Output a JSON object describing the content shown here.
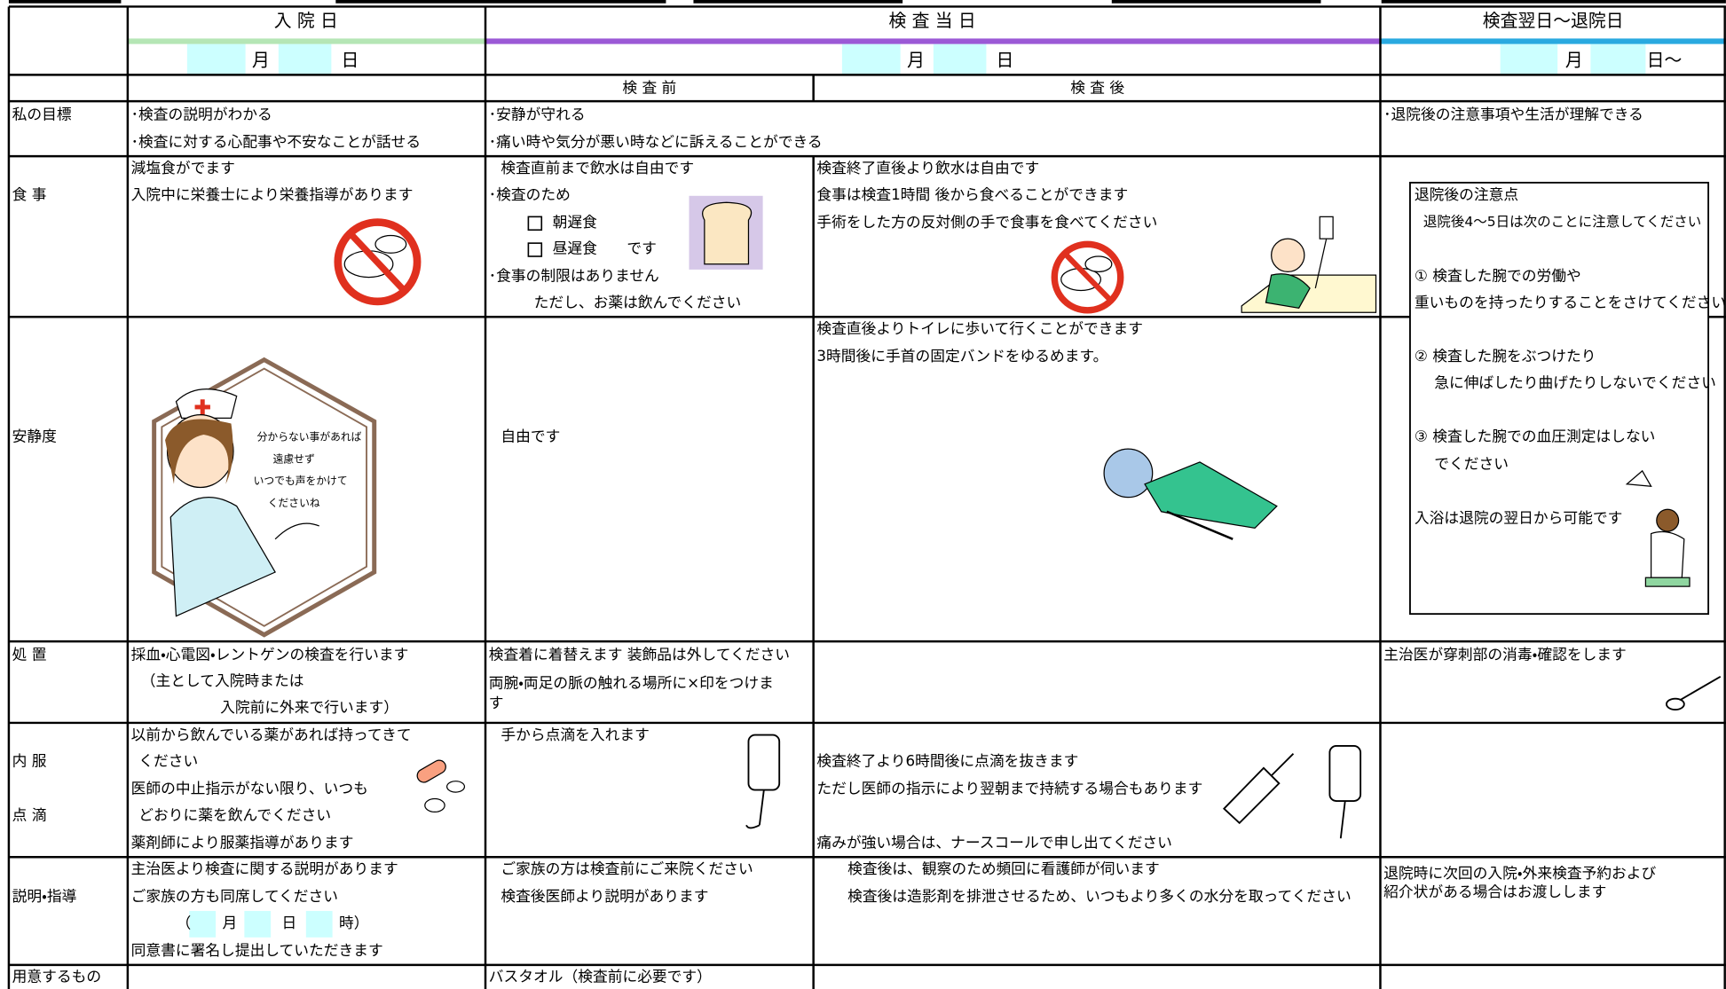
{
  "header": {
    "days": [
      "入 院 日",
      "検 査 当 日",
      "検査翌日～退院日"
    ],
    "dates": [
      [
        "月",
        "日"
      ],
      [
        "月",
        "日"
      ],
      [
        "月",
        "日～"
      ]
    ],
    "phases": [
      "検 査 前",
      "検 査 後"
    ]
  },
  "rows": [
    {
      "label": "私の目標",
      "cells": [
        [
          "･検査の説明がわかる",
          "･検査に対する心配事や不安なことが話せる"
        ],
        [
          "･安静が守れる",
          "･痛い時や気分が悪い時などに訴えることができる"
        ],
        [
          "･退院後の注意事項や生活が理解できる"
        ]
      ]
    },
    {
      "label": "食 事",
      "cells": [
        [
          "減塩食がでます",
          "入院中に栄養士により栄養指導があります"
        ],
        [
          "検査直前まで飲水は自由です",
          "･検査のため",
          "朝遅食",
          "昼遅食　　です",
          "･食事の制限はありません",
          "ただし、お薬は飲んでください"
        ],
        [
          "検査終了直後より飲水は自由です",
          "食事は検査1時間 後から食べることができます",
          "手術をした方の反対側の手で食事を食べてください"
        ]
      ]
    },
    {
      "label": "安静度",
      "cells": [
        [
          "分からない事があれば",
          "遠慮せず",
          "いつでも声をかけて",
          "くださいね"
        ],
        [
          "自由です"
        ],
        [
          "検査直後よりトイレに歩いて行くことができます",
          "3時間後に手首の固定バンドをゆるめます。"
        ]
      ]
    },
    {
      "label": "処 置",
      "cells": [
        [
          "採血・心電図・レントゲンの検査を行います",
          "（主として入院時または",
          "入院前に外来で行います）"
        ],
        [
          "検査着に着替えます  装飾品は外してください",
          "両腕・両足の脈の触れる場所に×印をつけま",
          "す"
        ],
        [
          "主治医が穿刺部の消毒・確認をします"
        ]
      ]
    },
    {
      "label": "内 服",
      "label2": "点 滴",
      "cells": [
        [
          "以前から飲んでいる薬があれば持ってきて",
          "ください",
          "医師の中止指示がない限り、いつも",
          "どおりに薬を飲んでください",
          "薬剤師により服薬指導があります"
        ],
        [
          "手から点滴を入れます"
        ],
        [
          "検査終了より6時間後に点滴を抜きます",
          "ただし医師の指示により翌朝まで持続する場合もあります",
          "痛みが強い場合は、ナースコールで申し出てください"
        ]
      ]
    },
    {
      "label": "説明・指導",
      "cells": [
        [
          "主治医より検査に関する説明があります",
          "ご家族の方も同席してください",
          "（",
          "月",
          "日",
          "時）",
          "同意書に署名し提出していただきます"
        ],
        [
          "ご家族の方は検査前にご来院ください",
          "検査後医師より説明があります"
        ],
        [
          "検査後は、観察のため頻回に看護師が伺います",
          "検査後は造影剤を排泄させるため、いつもより多くの水分を取ってください"
        ],
        [
          "退院時に次回の入院・外来検査予約および",
          "紹介状がある場合はお渡しします"
        ]
      ]
    },
    {
      "label": "用意するもの",
      "cells": [
        [
          "バスタオル（検査前に必要です）"
        ]
      ]
    }
  ],
  "discharge_notes": {
    "title": "退院後の注意点",
    "subtitle": "退院後4～5日は次のことに注意してください",
    "lines": [
      "①  検査した腕での労働や",
      "重いものを持ったりすることをさけてください",
      "②  検査した腕をぶつけたり",
      "急に伸ばしたり曲げたりしないでください",
      "③  検査した腕での血圧測定はしない",
      "でください",
      "入浴は退院の翌日から可能です"
    ]
  }
}
